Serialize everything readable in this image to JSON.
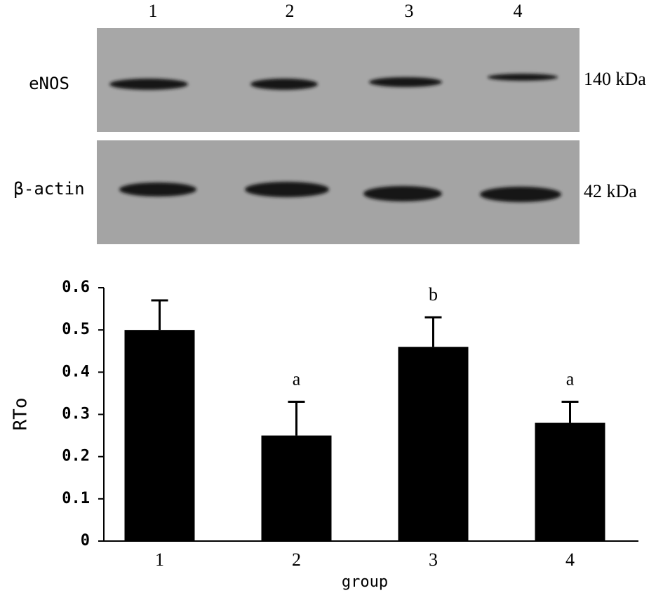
{
  "blot": {
    "lanes": [
      "1",
      "2",
      "3",
      "4"
    ],
    "rows": [
      {
        "label": "eNOS",
        "size": "140 kDa"
      },
      {
        "label": "β-actin",
        "size": "42 kDa"
      }
    ]
  },
  "chart_data": {
    "type": "bar",
    "ylabel": "RTo",
    "xlabel": "group",
    "categories": [
      "1",
      "2",
      "3",
      "4"
    ],
    "values": [
      0.5,
      0.25,
      0.46,
      0.28
    ],
    "errors": [
      0.07,
      0.08,
      0.07,
      0.05
    ],
    "significance": [
      null,
      "a",
      "b",
      "a"
    ],
    "color": "#000000",
    "ylim": [
      0,
      0.6
    ],
    "yticks": [
      0,
      0.1,
      0.2,
      0.3,
      0.4,
      0.5,
      0.6
    ],
    "grid": false
  }
}
